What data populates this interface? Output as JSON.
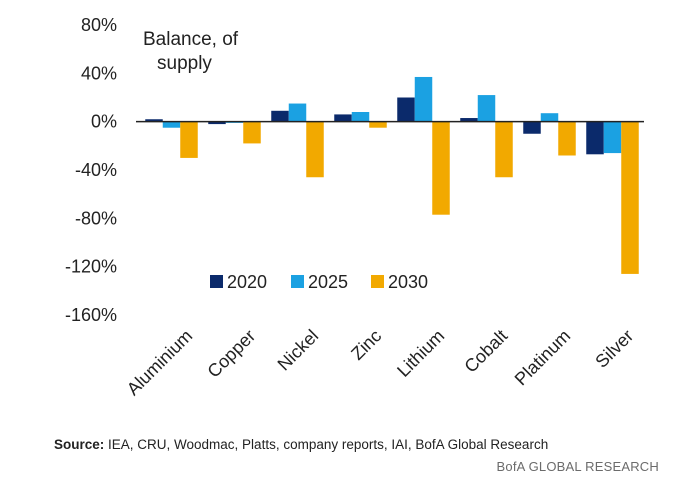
{
  "chart_data": {
    "type": "bar",
    "title": "",
    "annotation": [
      "Balance, of",
      "supply"
    ],
    "xlabel": "",
    "ylabel": "",
    "categories": [
      "Aluminium",
      "Copper",
      "Nickel",
      "Zinc",
      "Lithium",
      "Cobalt",
      "Platinum",
      "Silver"
    ],
    "series": [
      {
        "name": "2020",
        "color": "#0b2a6b",
        "values": [
          2,
          -2,
          9,
          6,
          20,
          3,
          -10,
          -27
        ]
      },
      {
        "name": "2025",
        "color": "#1ba1e2",
        "values": [
          -5,
          -1,
          15,
          8,
          37,
          22,
          7,
          -26
        ]
      },
      {
        "name": "2030",
        "color": "#f2a900",
        "values": [
          -30,
          -18,
          -46,
          -5,
          -77,
          -46,
          -28,
          -126
        ]
      }
    ],
    "ylim": [
      -160,
      80
    ],
    "yticks": [
      80,
      40,
      0,
      -40,
      -80,
      -120,
      -160
    ],
    "ytick_labels": [
      "80%",
      "40%",
      "0%",
      "-40%",
      "-80%",
      "-120%",
      "-160%"
    ],
    "grid": false,
    "legend_position": "lower-middle",
    "axis_color": "#222222"
  },
  "footer": {
    "source_label": "Source:",
    "source_text": " IEA, CRU, Woodmac, Platts, company reports, IAI, BofA Global Research",
    "credit": "BofA GLOBAL RESEARCH"
  }
}
